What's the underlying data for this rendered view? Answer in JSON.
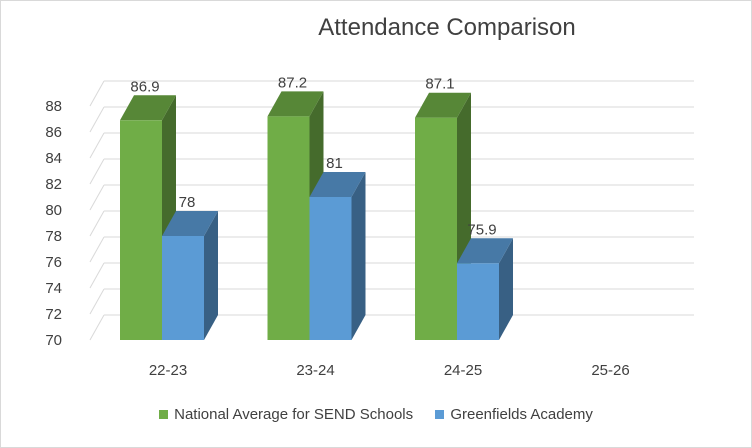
{
  "chart_data": {
    "type": "bar",
    "title": "Attendance Comparison",
    "categories": [
      "22-23",
      "23-24",
      "24-25",
      "25-26"
    ],
    "series": [
      {
        "name": "National Average for SEND Schools",
        "values": [
          86.9,
          87.2,
          87.1,
          null
        ],
        "color": "#70ad47"
      },
      {
        "name": "Greenfields Academy",
        "values": [
          78,
          81,
          75.9,
          null
        ],
        "color": "#5b9bd5"
      }
    ],
    "data_labels": [
      [
        "86.9",
        "87.2",
        "87.1",
        ""
      ],
      [
        "78",
        "81",
        "75.9",
        ""
      ]
    ],
    "y_ticks": [
      "70",
      "72",
      "74",
      "76",
      "78",
      "80",
      "82",
      "84",
      "86",
      "88"
    ],
    "ylim": [
      70,
      88
    ],
    "grid": true,
    "style": "3d-clustered-column",
    "legend_position": "bottom"
  }
}
